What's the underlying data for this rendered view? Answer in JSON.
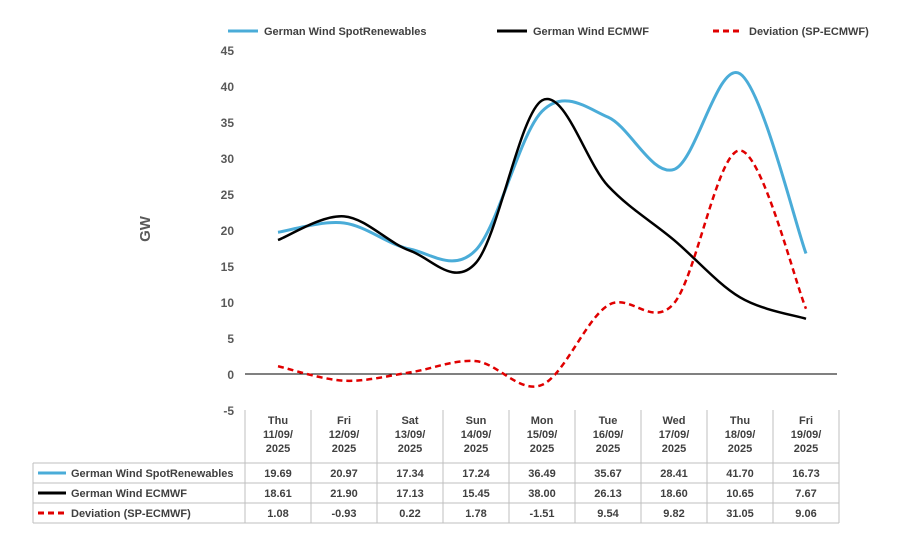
{
  "chart_data": {
    "type": "line",
    "ylabel": "GW",
    "ylim": [
      -5,
      45
    ],
    "yticks": [
      -5,
      0,
      5,
      10,
      15,
      20,
      25,
      30,
      35,
      40,
      45
    ],
    "legend_position": "top",
    "categories": [
      [
        "Thu",
        "11/09/",
        "2025"
      ],
      [
        "Fri",
        "12/09/",
        "2025"
      ],
      [
        "Sat",
        "13/09/",
        "2025"
      ],
      [
        "Sun",
        "14/09/",
        "2025"
      ],
      [
        "Mon",
        "15/09/",
        "2025"
      ],
      [
        "Tue",
        "16/09/",
        "2025"
      ],
      [
        "Wed",
        "17/09/",
        "2025"
      ],
      [
        "Thu",
        "18/09/",
        "2025"
      ],
      [
        "Fri",
        "19/09/",
        "2025"
      ]
    ],
    "series": [
      {
        "name": "German Wind SpotRenewables",
        "color": "#4AACD8",
        "dash": "solid",
        "values": [
          19.69,
          20.97,
          17.34,
          17.24,
          36.49,
          35.67,
          28.41,
          41.7,
          16.73
        ],
        "labels": [
          "19.69",
          "20.97",
          "17.34",
          "17.24",
          "36.49",
          "35.67",
          "28.41",
          "41.70",
          "16.73"
        ]
      },
      {
        "name": "German Wind ECMWF",
        "color": "#000000",
        "dash": "solid",
        "values": [
          18.61,
          21.9,
          17.13,
          15.45,
          38.0,
          26.13,
          18.6,
          10.65,
          7.67
        ],
        "labels": [
          "18.61",
          "21.90",
          "17.13",
          "15.45",
          "38.00",
          "26.13",
          "18.60",
          "10.65",
          "7.67"
        ]
      },
      {
        "name": "Deviation (SP-ECMWF)",
        "color": "#E00000",
        "dash": "dashed",
        "values": [
          1.08,
          -0.93,
          0.22,
          1.78,
          -1.51,
          9.54,
          9.82,
          31.05,
          9.06
        ],
        "labels": [
          "1.08",
          "-0.93",
          "0.22",
          "1.78",
          "-1.51",
          "9.54",
          "9.82",
          "31.05",
          "9.06"
        ]
      }
    ]
  }
}
